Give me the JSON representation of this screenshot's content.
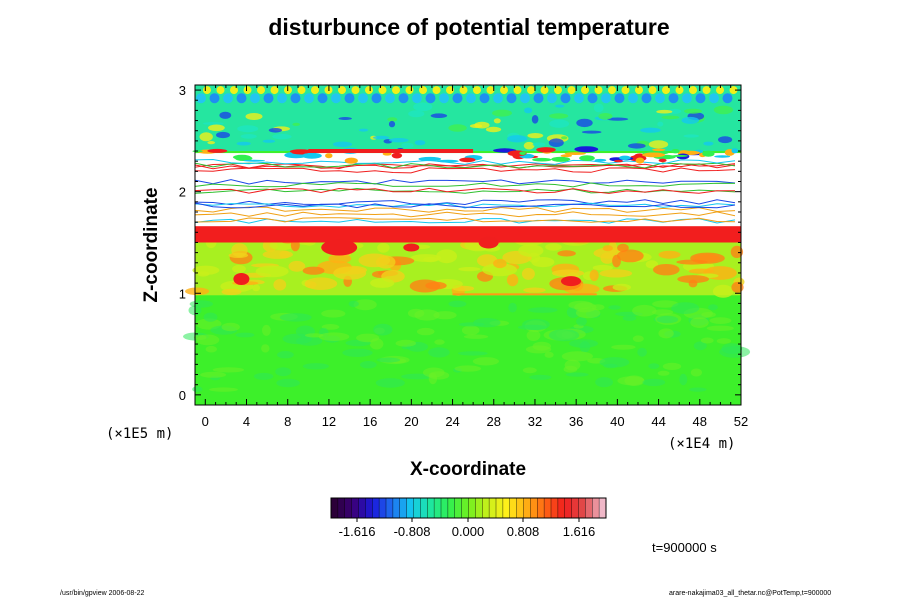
{
  "chart_data": {
    "type": "heatmap",
    "title": "disturbunce of potential temperature",
    "xlabel": "X-coordinate",
    "ylabel": "Z-coordinate",
    "x_unit": "(×1E4 m)",
    "z_unit": "(×1E5 m)",
    "xlim": [
      -1,
      52
    ],
    "ylim": [
      -0.1,
      3.05
    ],
    "x_ticks": [
      "0",
      "4",
      "8",
      "12",
      "16",
      "20",
      "24",
      "28",
      "32",
      "36",
      "40",
      "44",
      "48",
      "52"
    ],
    "y_ticks": [
      "0",
      "1",
      "2",
      "3"
    ],
    "colorbar": {
      "ticks": [
        "-1.616",
        "-0.808",
        "0.000",
        "0.808",
        "1.616"
      ],
      "colors": [
        "#2b0038",
        "#3a007a",
        "#1a1adc",
        "#1f6ff0",
        "#14c8f0",
        "#1ee6a0",
        "#30f050",
        "#70f020",
        "#c8f01a",
        "#fff01a",
        "#ffb014",
        "#ff6414",
        "#f01e1e",
        "#e04a4a",
        "#f0b8c8"
      ]
    },
    "bands": [
      {
        "z": [
          -0.05,
          0.95
        ],
        "field": "green (≈0.0)"
      },
      {
        "z": [
          0.95,
          1.6
        ],
        "field": "yellow-orange with red patches (≈+0.8 to +1.6)"
      },
      {
        "z": [
          1.55,
          1.65
        ],
        "field": "red layer (≈+1.6)"
      },
      {
        "z": [
          1.65,
          2.4
        ],
        "field": "saturated, white with contours"
      },
      {
        "z": [
          2.4,
          3.05
        ],
        "field": "cyan-green waves with blue/yellow spots"
      }
    ],
    "time": "t=900000 s"
  },
  "footer": {
    "left": "/usr/bin/gpview 2006-08-22",
    "right": "arare-nakajima03_all_thetar.nc@PotTemp,t=900000"
  }
}
